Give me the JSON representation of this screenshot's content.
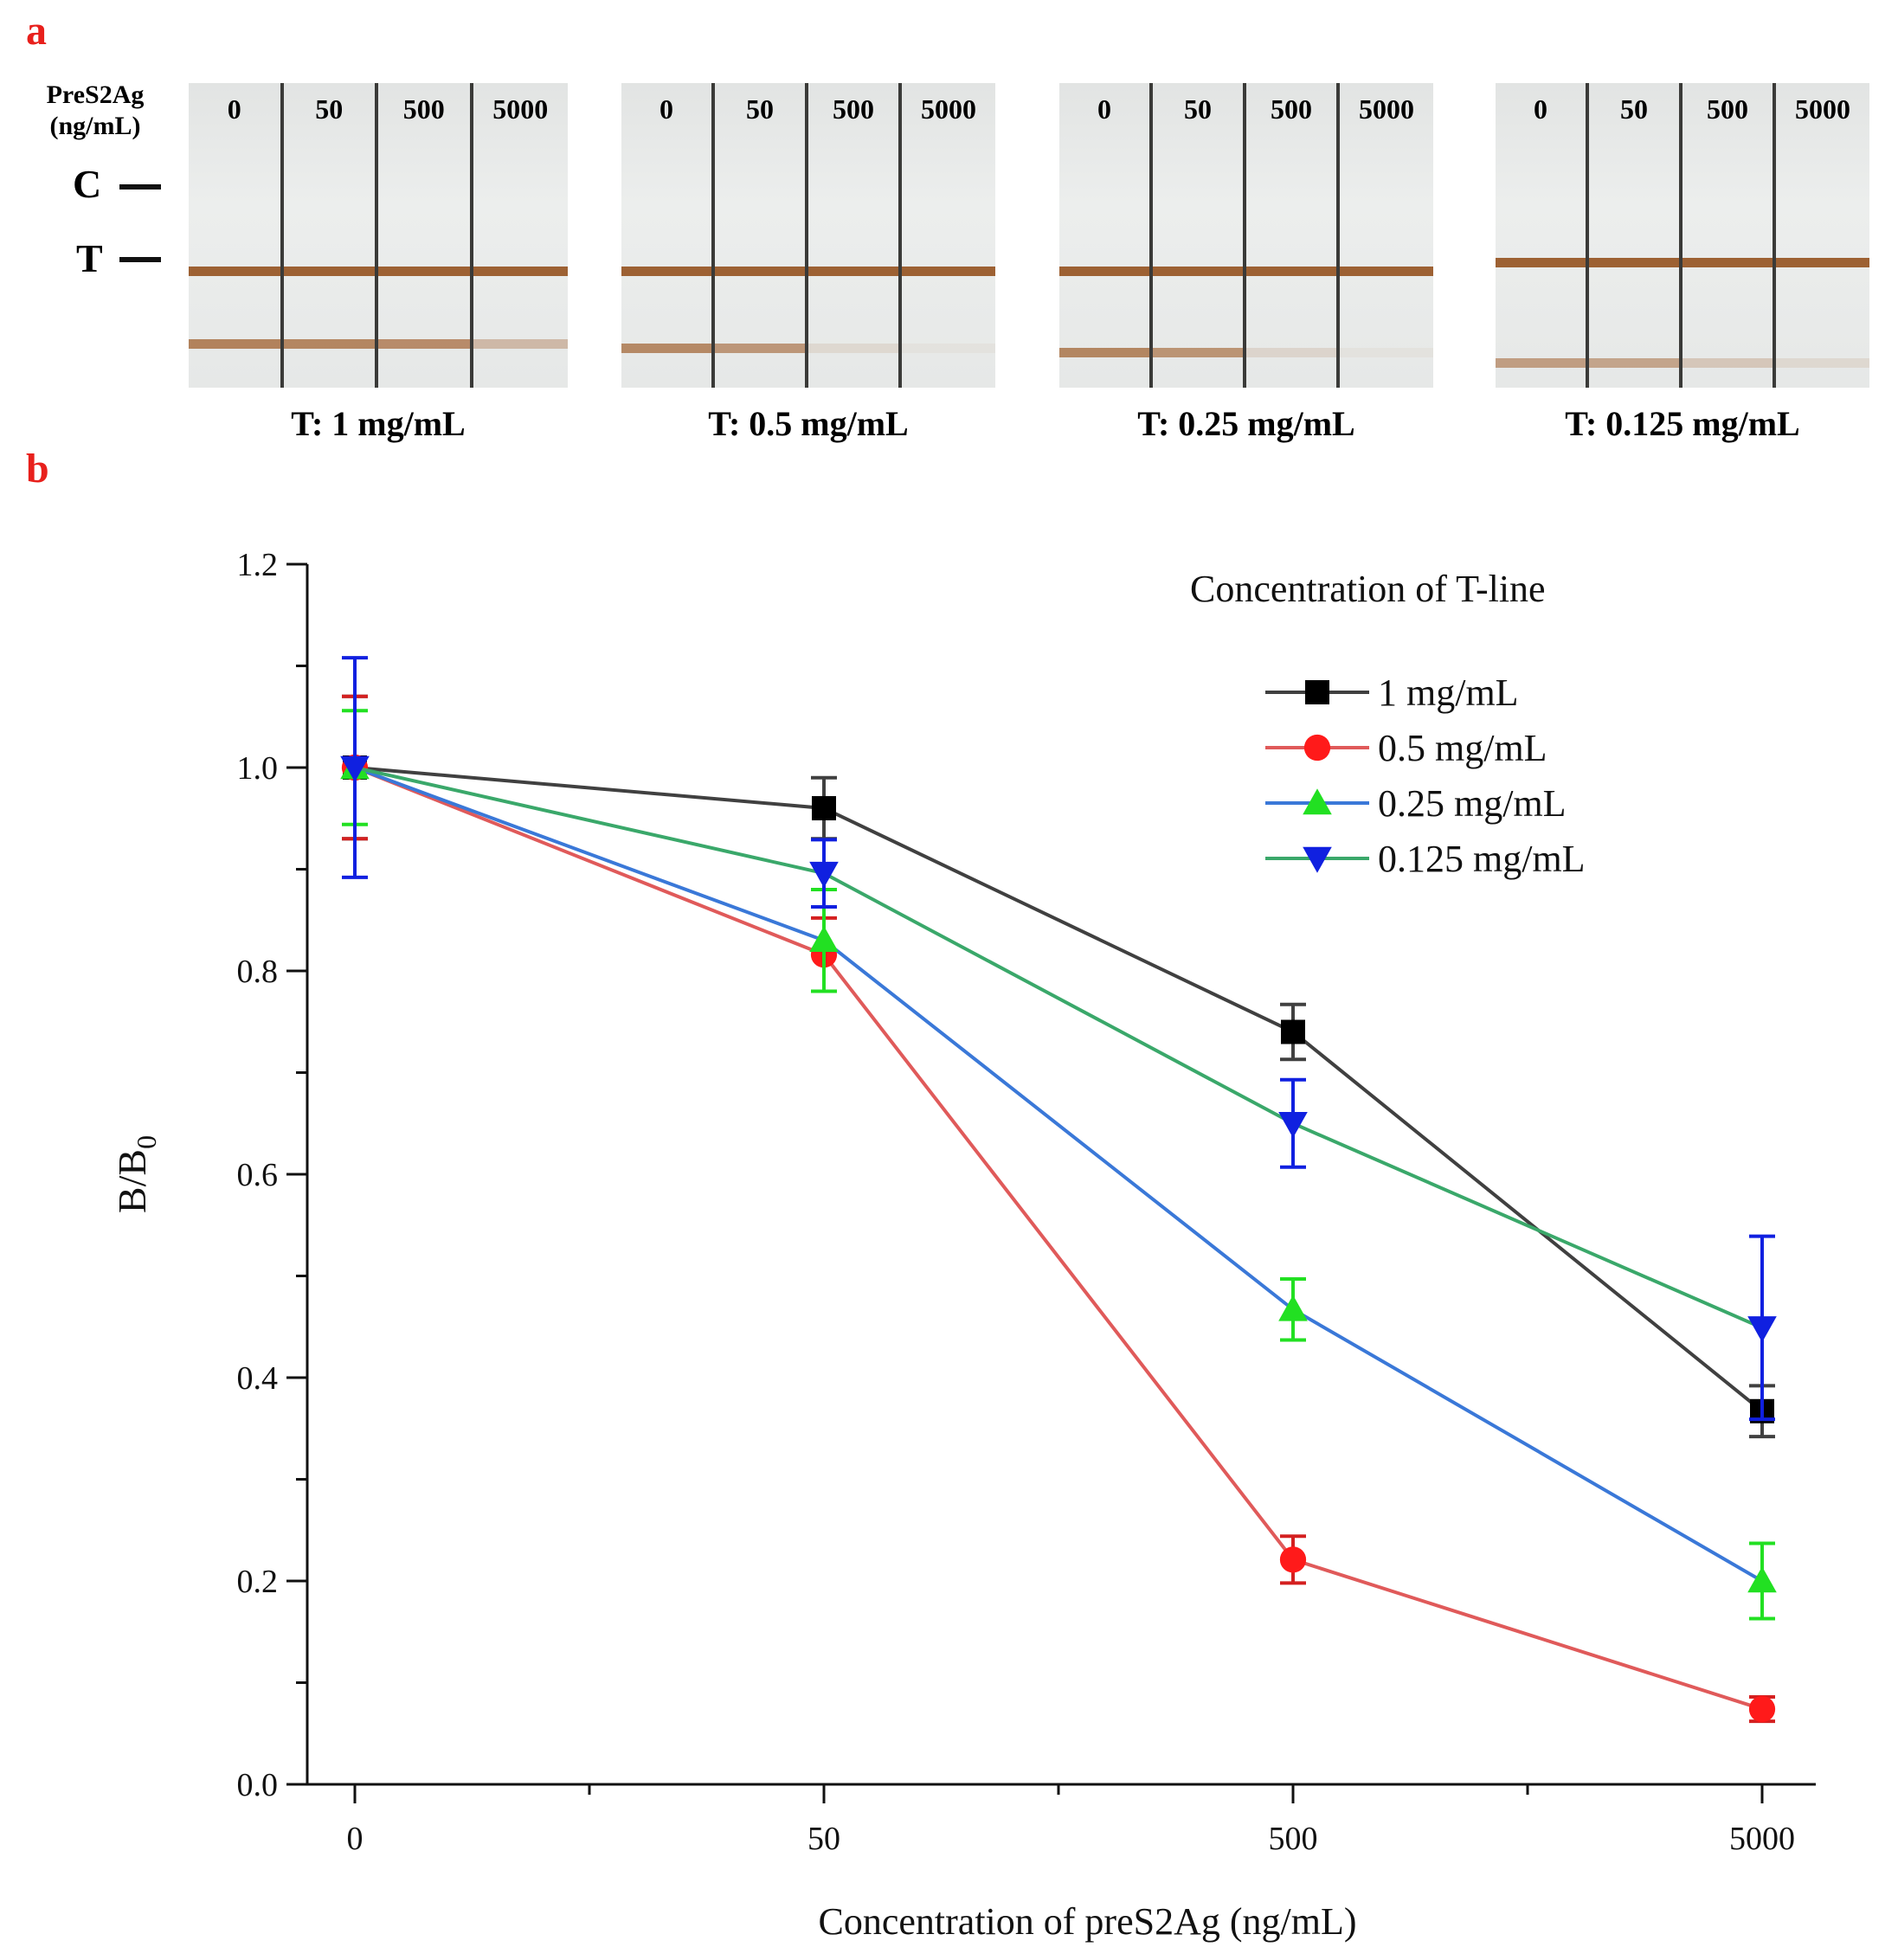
{
  "panel_a": {
    "label": "a",
    "analyte_label_line1": "PreS2Ag",
    "analyte_label_line2": "(ng/mL)",
    "control_line_label": "C",
    "test_line_label": "T",
    "strip_concentrations": [
      "0",
      "50",
      "500",
      "5000"
    ],
    "groups": [
      {
        "caption": "T: 1 mg/mL",
        "t_intensity": [
          0.75,
          0.72,
          0.68,
          0.35
        ]
      },
      {
        "caption": "T: 0.5 mg/mL",
        "t_intensity": [
          0.7,
          0.6,
          0.12,
          0.05
        ]
      },
      {
        "caption": "T: 0.25 mg/mL",
        "t_intensity": [
          0.72,
          0.62,
          0.15,
          0.05
        ]
      },
      {
        "caption": "T: 0.125 mg/mL",
        "t_intensity": [
          0.55,
          0.5,
          0.25,
          0.12
        ]
      }
    ]
  },
  "panel_b": {
    "label": "b"
  },
  "chart_data": {
    "type": "line",
    "title": "",
    "xlabel": "Concentration of preS2Ag (ng/mL)",
    "ylabel_main": "B/B",
    "ylabel_sub": "0",
    "categories": [
      "0",
      "50",
      "500",
      "5000"
    ],
    "ylim": [
      0.0,
      1.2
    ],
    "yticks": [
      "0.0",
      "0.2",
      "0.4",
      "0.6",
      "0.8",
      "1.0",
      "1.2"
    ],
    "legend_title": "Concentration of T-line",
    "legend_position": "top-right",
    "series": [
      {
        "name": "1 mg/mL",
        "marker": "square",
        "line_color": "#404040",
        "marker_color": "#000000",
        "err_color": "#404040",
        "values": [
          1.0,
          0.96,
          0.74,
          0.367
        ],
        "errors": [
          0.07,
          0.03,
          0.027,
          0.025
        ]
      },
      {
        "name": "0.5 mg/mL",
        "marker": "circle",
        "line_color": "#e05a5a",
        "marker_color": "#ff1a1a",
        "err_color": "#d42020",
        "values": [
          1.0,
          0.816,
          0.221,
          0.074
        ],
        "errors": [
          0.07,
          0.036,
          0.023,
          0.012
        ]
      },
      {
        "name": "0.25 mg/mL",
        "marker": "triangle-up",
        "line_color": "#3a78d8",
        "marker_color": "#22e022",
        "err_color": "#22e022",
        "values": [
          1.0,
          0.83,
          0.467,
          0.2
        ],
        "errors": [
          0.056,
          0.05,
          0.03,
          0.037
        ]
      },
      {
        "name": "0.125 mg/mL",
        "marker": "triangle-down",
        "line_color": "#3aa86a",
        "marker_color": "#1020e0",
        "err_color": "#1020e0",
        "values": [
          1.0,
          0.896,
          0.65,
          0.449
        ],
        "errors": [
          0.108,
          0.033,
          0.043,
          0.09
        ]
      }
    ]
  }
}
